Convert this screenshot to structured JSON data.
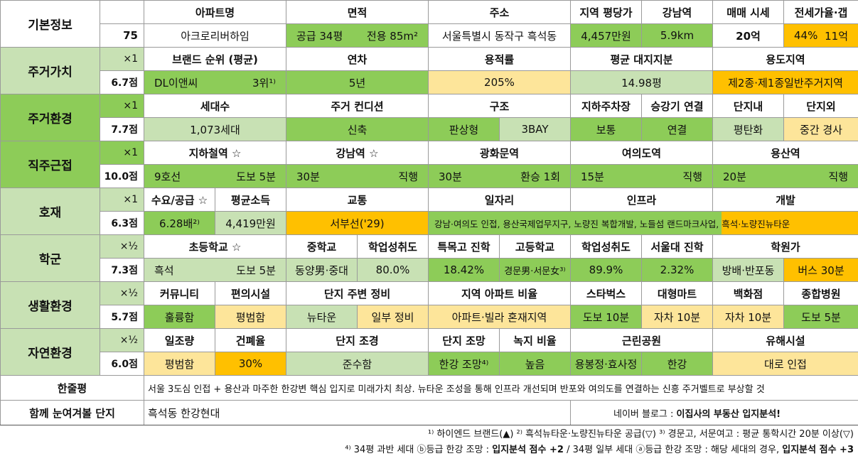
{
  "basic": {
    "label": "기본정보",
    "number": "75",
    "headers": [
      "아파트명",
      "면적",
      "주소",
      "지역 평당가",
      "강남역",
      "매매 시세",
      "전세가율·갭"
    ],
    "apt_name": "아크로리버하임",
    "area_supply": "공급 34평",
    "area_exclusive": "전용 85m²",
    "address": "서울특별시 동작구 흑석동",
    "region_price": "4,457만원",
    "gangnam_dist": "5.9km",
    "sale_price": "20억",
    "jeonse_ratio": "44%",
    "gap": "11억"
  },
  "sections": {
    "living_value": {
      "label": "주거가치",
      "weight": "×1",
      "score": "6.7점",
      "headers": [
        "브랜드 순위 (평균)",
        "연차",
        "용적률",
        "평균 대지지분",
        "용도지역"
      ],
      "values": [
        "DL이앤씨",
        "3위¹⁾",
        "5년",
        "205%",
        "14.98평",
        "제2종·제1종일반주거지역"
      ]
    },
    "living_env": {
      "label": "주거환경",
      "weight": "×1",
      "score": "7.7점",
      "headers": [
        "세대수",
        "주거 컨디션",
        "구조",
        "지하주차장",
        "승강기 연결",
        "단지내",
        "단지외"
      ],
      "values": [
        "1,073세대",
        "신축",
        "판상형",
        "3BAY",
        "보통",
        "연결",
        "평탄화",
        "중간 경사"
      ]
    },
    "commute": {
      "label": "직주근접",
      "weight": "×1",
      "score": "10.0점",
      "headers": [
        "지하철역 ☆",
        "강남역 ☆",
        "광화문역",
        "여의도역",
        "용산역"
      ],
      "values": [
        "9호선",
        "도보 5분",
        "30분",
        "직행",
        "30분",
        "환승 1회",
        "15분",
        "직행",
        "20분",
        "직행"
      ]
    },
    "development": {
      "label": "호재",
      "weight": "×1",
      "score": "6.3점",
      "headers": [
        "수요/공급 ☆",
        "평균소득",
        "교통",
        "일자리",
        "인프라",
        "개발"
      ],
      "values": [
        "6.28배²⁾",
        "4,419만원",
        "서부선('29)",
        "강남·여의도 인접, 용산국제업무지구, 노량진 복합개발, 노들섬 랜드마크사업,",
        "흑석·노량진뉴타운"
      ]
    },
    "school": {
      "label": "학군",
      "weight": "×½",
      "score": "7.3점",
      "headers": [
        "초등학교 ☆",
        "중학교",
        "학업성취도",
        "특목고 진학",
        "고등학교",
        "학업성취도",
        "서울대 진학",
        "학원가"
      ],
      "values": [
        "흑석",
        "도보 5분",
        "동양男·중대",
        "80.0%",
        "18.42%",
        "경문男·서문女³⁾",
        "89.9%",
        "2.32%",
        "방배·반포동",
        "버스 30분"
      ]
    },
    "life": {
      "label": "생활환경",
      "weight": "×½",
      "score": "5.7점",
      "headers": [
        "커뮤니티",
        "편의시설",
        "단지 주변 정비",
        "지역 아파트 비율",
        "스타벅스",
        "대형마트",
        "백화점",
        "종합병원"
      ],
      "values": [
        "훌륭함",
        "평범함",
        "뉴타운",
        "일부 정비",
        "아파트·빌라 혼재지역",
        "도보 10분",
        "자차 10분",
        "자차 10분",
        "도보 5분"
      ]
    },
    "nature": {
      "label": "자연환경",
      "weight": "×½",
      "score": "6.0점",
      "headers": [
        "일조량",
        "건폐율",
        "단지 조경",
        "단지 조망",
        "녹지 비율",
        "근린공원",
        "유해시설"
      ],
      "values": [
        "평범함",
        "30%",
        "준수함",
        "한강 조망⁴⁾",
        "높음",
        "용봉정·효사정",
        "한강",
        "대로 인접"
      ]
    }
  },
  "summary": {
    "label": "한줄평",
    "text": "서울 3도심 인접 + 용산과 마주한 한강변 핵심 입지로 미래가치 최상. 뉴타운 조성을 통해 인프라 개선되며 반포와 여의도를 연결하는 신흥 주거벨트로 부상할 것"
  },
  "related": {
    "label": "함께 눈여겨볼 단지",
    "value": "흑석동 한강현대",
    "blog_prefix": "네이버 블로그 : ",
    "blog_name": "이집사의 부동산 입지분석!"
  },
  "footnotes": {
    "line1": "¹⁾ 하이엔드 브랜드(▲) ²⁾ 흑석뉴타운·노량진뉴타운 공급(▽) ³⁾ 경문고, 서문여고 : 평균 통학시간 20분 이상(▽)",
    "line2_a": "⁴⁾ 34평 과반 세대 ⓑ등급 한강 조망 : ",
    "line2_b": "입지분석 점수 +2",
    "line2_c": " / 34평 일부 세대 ⓐ등급 한강 조망 : 해당 세대의 경우, ",
    "line2_d": "입지분석 점수 +3"
  },
  "colors": {
    "green_strong": "#8dcc58",
    "green_light": "#c8e1b4",
    "yellow": "#fde59a",
    "orange": "#ffc000"
  }
}
